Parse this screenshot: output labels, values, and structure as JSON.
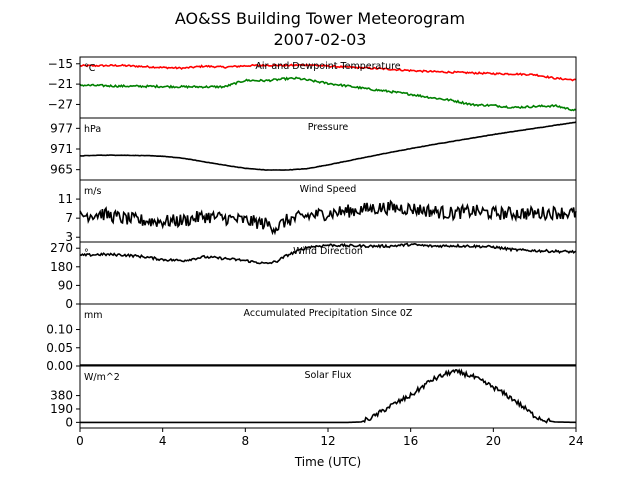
{
  "chart_data": {
    "type": "line",
    "title": "AO&SS Building Tower Meteorogram",
    "subtitle": "2007-02-03",
    "xlabel": "Time (UTC)",
    "xlim": [
      0,
      24
    ],
    "xticks": [
      "0",
      "4",
      "8",
      "12",
      "16",
      "20",
      "24"
    ],
    "panels": [
      {
        "title": "Air and Dewpoint Temperature",
        "unit": "°C",
        "ylim": [
          -31,
          -13
        ],
        "yticks": [
          {
            "v": -15,
            "label": "−15"
          },
          {
            "v": -21,
            "label": "−21"
          },
          {
            "v": -27,
            "label": "−27"
          }
        ],
        "series": [
          {
            "color": "#ff0000",
            "noise": 0.25,
            "x": [
              0,
              2,
              4,
              5,
              6,
              7,
              8,
              9,
              10,
              11,
              12,
              13,
              14,
              15,
              16,
              17,
              18,
              19,
              20,
              21,
              22,
              23,
              24
            ],
            "y": [
              -15.6,
              -15.5,
              -16.1,
              -16.3,
              -15.7,
              -16.0,
              -15.6,
              -15.4,
              -15.5,
              -15.3,
              -15.7,
              -16.0,
              -16.3,
              -16.6,
              -17.0,
              -17.3,
              -17.5,
              -17.7,
              -17.9,
              -18.0,
              -18.2,
              -19.3,
              -19.8
            ]
          },
          {
            "color": "#008000",
            "noise": 0.3,
            "x": [
              0,
              2,
              4,
              5,
              6,
              7,
              7.5,
              8,
              9,
              10,
              10.5,
              11,
              12,
              13,
              14,
              15,
              16,
              17,
              18,
              19,
              20,
              21,
              22,
              23,
              24
            ],
            "y": [
              -21.3,
              -21.6,
              -21.7,
              -21.8,
              -21.8,
              -21.8,
              -20.8,
              -19.9,
              -20.0,
              -19.4,
              -19.3,
              -19.8,
              -20.8,
              -21.6,
              -22.5,
              -23.2,
              -24.0,
              -25.0,
              -25.8,
              -27.1,
              -27.3,
              -27.9,
              -27.6,
              -27.4,
              -28.8
            ]
          }
        ]
      },
      {
        "title": "Pressure",
        "unit": "hPa",
        "ylim": [
          962,
          980
        ],
        "yticks": [
          {
            "v": 977,
            "label": "977"
          },
          {
            "v": 971,
            "label": "971"
          },
          {
            "v": 965,
            "label": "965"
          }
        ],
        "series": [
          {
            "color": "#000000",
            "noise": 0.05,
            "x": [
              0,
              1,
              2,
              3,
              4,
              5,
              6,
              7,
              8,
              9,
              10,
              11,
              12,
              13,
              14,
              15,
              16,
              17,
              18,
              19,
              20,
              21,
              22,
              23,
              24
            ],
            "y": [
              969.0,
              969.2,
              969.2,
              969.1,
              968.9,
              968.3,
              967.3,
              966.3,
              965.4,
              964.9,
              964.9,
              965.3,
              966.4,
              967.6,
              968.8,
              970.0,
              971.1,
              972.2,
              973.2,
              974.2,
              975.2,
              976.1,
              977.0,
              977.9,
              978.8
            ]
          }
        ]
      },
      {
        "title": "Wind Speed",
        "unit": "m/s",
        "ylim": [
          2,
          15
        ],
        "yticks": [
          {
            "v": 11,
            "label": "11"
          },
          {
            "v": 7,
            "label": "7"
          },
          {
            "v": 3,
            "label": "3"
          }
        ],
        "series": [
          {
            "color": "#000000",
            "noise": 1.4,
            "x": [
              0,
              1,
              2,
              3,
              4,
              5,
              6,
              7,
              8,
              9,
              9.5,
              10,
              11,
              12,
              13,
              14,
              15,
              16,
              17,
              18,
              19,
              20,
              21,
              22,
              23,
              24
            ],
            "y": [
              7.5,
              8.0,
              7.0,
              6.5,
              6.3,
              6.5,
              7.4,
              7.0,
              6.5,
              5.8,
              5.0,
              6.5,
              7.5,
              8.0,
              8.5,
              9.0,
              9.2,
              9.0,
              8.5,
              8.0,
              8.5,
              8.0,
              8.0,
              8.0,
              8.2,
              8.0
            ]
          }
        ]
      },
      {
        "title": "Wind Direction",
        "unit": "°",
        "ylim": [
          0,
          300
        ],
        "yticks": [
          {
            "v": 270,
            "label": "270"
          },
          {
            "v": 180,
            "label": "180"
          },
          {
            "v": 90,
            "label": "90"
          },
          {
            "v": 0,
            "label": "0"
          }
        ],
        "series": [
          {
            "color": "#000000",
            "noise": 6,
            "x": [
              0,
              1,
              2,
              3,
              4,
              5,
              6,
              7,
              8,
              9,
              9.5,
              10,
              11,
              12,
              13,
              14,
              15,
              16,
              17,
              18,
              19,
              20,
              21,
              22,
              23,
              24
            ],
            "y": [
              235,
              240,
              238,
              230,
              215,
              210,
              228,
              220,
              210,
              195,
              205,
              235,
              275,
              285,
              282,
              280,
              280,
              288,
              280,
              282,
              280,
              276,
              262,
              258,
              255,
              252
            ]
          }
        ]
      },
      {
        "title": "Accumulated Precipitation Since 0Z",
        "unit": "mm",
        "ylim": [
          0,
          0.17
        ],
        "yticks": [
          {
            "v": 0.1,
            "label": "0.10"
          },
          {
            "v": 0.05,
            "label": "0.05"
          },
          {
            "v": 0.0,
            "label": "0.00"
          }
        ],
        "series": [
          {
            "color": "#000000",
            "noise": 0,
            "x": [
              0,
              24
            ],
            "y": [
              0,
              0
            ]
          }
        ]
      },
      {
        "title": "Solar Flux",
        "unit": "W/m^2",
        "ylim": [
          -80,
          800
        ],
        "yticks": [
          {
            "v": 380,
            "label": "380"
          },
          {
            "v": 190,
            "label": "190"
          },
          {
            "v": 0,
            "label": "0"
          }
        ],
        "series": [
          {
            "color": "#000000",
            "noise": 35,
            "x": [
              0,
              13,
              13.6,
              14.2,
              15,
              16,
              17,
              18,
              18.5,
              19,
              20,
              21,
              22,
              22.5,
              23,
              24
            ],
            "y": [
              0,
              0,
              5,
              80,
              230,
              380,
              600,
              720,
              700,
              650,
              500,
              320,
              90,
              30,
              5,
              0
            ]
          }
        ]
      }
    ]
  }
}
